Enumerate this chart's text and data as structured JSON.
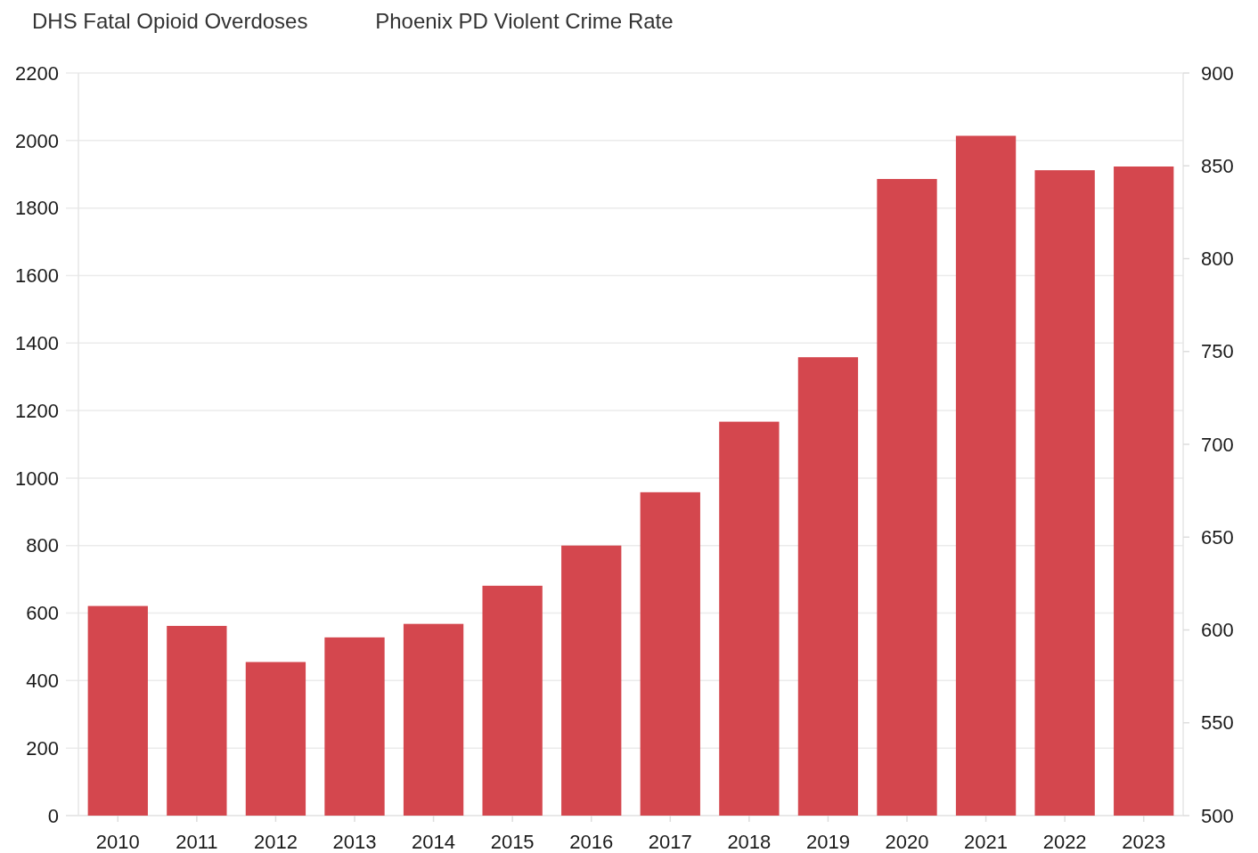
{
  "chart_data": {
    "type": "bar",
    "categories": [
      "2010",
      "2011",
      "2012",
      "2013",
      "2014",
      "2015",
      "2016",
      "2017",
      "2018",
      "2019",
      "2020",
      "2021",
      "2022",
      "2023"
    ],
    "series": [
      {
        "name": "DHS Fatal Opioid Overdoses",
        "color": "#d4474e",
        "values": [
          621,
          562,
          455,
          528,
          568,
          681,
          800,
          958,
          1167,
          1358,
          1886,
          2014,
          1912,
          1923
        ]
      },
      {
        "name": "Phoenix PD Violent Crime Rate",
        "values": [
          null,
          null,
          null,
          null,
          null,
          null,
          null,
          null,
          null,
          null,
          null,
          null,
          null,
          null
        ]
      }
    ],
    "ylim": [
      0,
      2200
    ],
    "yticks": [
      0,
      200,
      400,
      600,
      800,
      1000,
      1200,
      1400,
      1600,
      1800,
      2000,
      2200
    ],
    "y2lim": [
      500,
      900
    ],
    "y2ticks": [
      500,
      550,
      600,
      650,
      700,
      750,
      800,
      850,
      900
    ],
    "grid": "y",
    "legend": "top left"
  }
}
